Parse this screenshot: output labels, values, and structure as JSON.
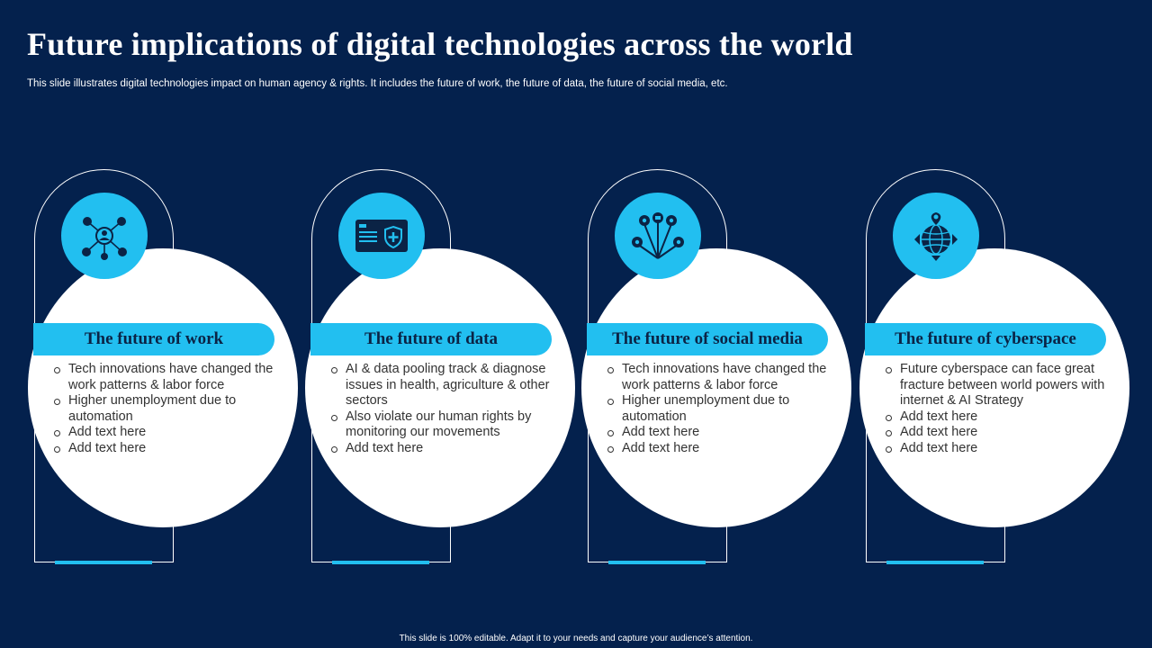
{
  "title": "Future implications of digital technologies across the world",
  "subtitle": "This slide illustrates digital technologies impact on human agency & rights. It includes the future of work, the future of data, the future of social media, etc.",
  "footer": "This slide is 100% editable.  Adapt it to your needs and capture your audience’s attention.",
  "colors": {
    "background": "#04214d",
    "accent": "#22bff0",
    "card": "#ffffff",
    "heading_text": "#0b2345"
  },
  "cards": [
    {
      "heading": "The future of work",
      "icon": "network-people-icon",
      "bullets": [
        "Tech innovations have changed the work patterns & labor force",
        "Higher unemployment due to automation",
        "Add text here",
        "Add text here"
      ]
    },
    {
      "heading": "The future of data",
      "icon": "data-shield-card-icon",
      "bullets": [
        "AI & data pooling track & diagnose issues in health, agriculture & other sectors",
        "Also violate our human rights by monitoring our movements",
        "Add text here"
      ]
    },
    {
      "heading": "The future of social media",
      "icon": "social-media-fan-icon",
      "bullets": [
        "Tech innovations have changed the work patterns & labor force",
        "Higher unemployment due to automation",
        "Add text here",
        "Add text here"
      ]
    },
    {
      "heading": "The future of cyberspace",
      "icon": "globe-location-icon",
      "bullets": [
        "Future cyberspace can face great fracture between world powers with internet & AI Strategy",
        "Add text here",
        "Add text here",
        "Add text here"
      ]
    }
  ]
}
